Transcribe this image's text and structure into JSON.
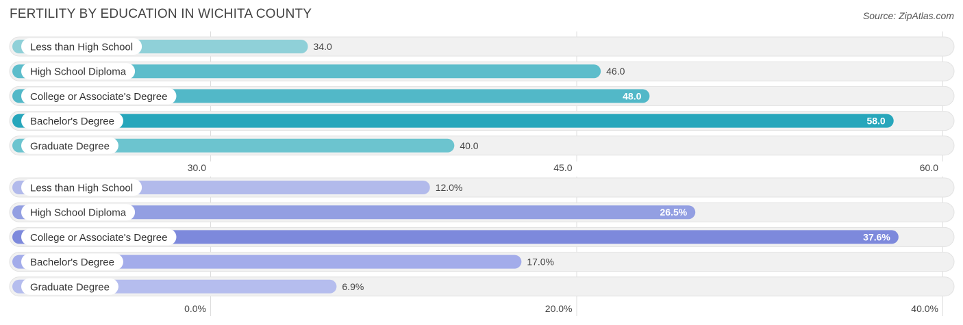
{
  "header": {
    "title": "FERTILITY BY EDUCATION IN WICHITA COUNTY",
    "source": "Source: ZipAtlas.com"
  },
  "chart_data": [
    {
      "type": "bar",
      "orientation": "horizontal",
      "categories": [
        "Less than High School",
        "High School Diploma",
        "College or Associate's Degree",
        "Bachelor's Degree",
        "Graduate Degree"
      ],
      "values": [
        34.0,
        46.0,
        48.0,
        58.0,
        40.0
      ],
      "value_labels": [
        "34.0",
        "46.0",
        "48.0",
        "58.0",
        "40.0"
      ],
      "xlim": [
        30.0,
        60.0
      ],
      "ticks": [
        30.0,
        45.0,
        60.0
      ],
      "tick_labels": [
        "30.0",
        "45.0",
        "60.0"
      ],
      "colors": [
        "#8fd0d8",
        "#5dbdcb",
        "#52b8c8",
        "#27a6bb",
        "#6cc4cf"
      ],
      "grid": true
    },
    {
      "type": "bar",
      "orientation": "horizontal",
      "categories": [
        "Less than High School",
        "High School Diploma",
        "College or Associate's Degree",
        "Bachelor's Degree",
        "Graduate Degree"
      ],
      "values": [
        12.0,
        26.5,
        37.6,
        17.0,
        6.9
      ],
      "value_labels": [
        "12.0%",
        "26.5%",
        "37.6%",
        "17.0%",
        "6.9%"
      ],
      "xlim": [
        0.0,
        40.0
      ],
      "ticks": [
        0.0,
        20.0,
        40.0
      ],
      "tick_labels": [
        "0.0%",
        "20.0%",
        "40.0%"
      ],
      "colors": [
        "#b2baeb",
        "#939fe2",
        "#7d89dc",
        "#a3acea",
        "#b5bdee"
      ],
      "grid": true
    }
  ]
}
